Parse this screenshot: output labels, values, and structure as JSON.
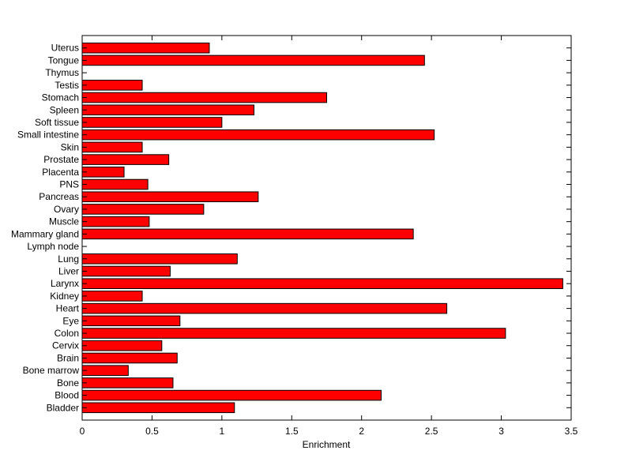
{
  "chart_data": {
    "type": "bar",
    "orientation": "horizontal",
    "xlabel": "Enrichment",
    "ylabel": "",
    "title": "",
    "xlim": [
      0,
      3.5
    ],
    "xticks": [
      "0",
      "0.5",
      "1",
      "1.5",
      "2",
      "2.5",
      "3",
      "3.5"
    ],
    "grid": false,
    "bar_color": "#ff0000",
    "edge_color": "#000000",
    "categories": [
      "Uterus",
      "Tongue",
      "Thymus",
      "Testis",
      "Stomach",
      "Spleen",
      "Soft tissue",
      "Small intestine",
      "Skin",
      "Prostate",
      "Placenta",
      "PNS",
      "Pancreas",
      "Ovary",
      "Muscle",
      "Mammary gland",
      "Lymph node",
      "Lung",
      "Liver",
      "Larynx",
      "Kidney",
      "Heart",
      "Eye",
      "Colon",
      "Cervix",
      "Brain",
      "Bone marrow",
      "Bone",
      "Blood",
      "Bladder"
    ],
    "values": [
      0.91,
      2.45,
      0,
      0.43,
      1.75,
      1.23,
      1.0,
      2.52,
      0.43,
      0.62,
      0.3,
      0.47,
      1.26,
      0.87,
      0.48,
      2.37,
      0,
      1.11,
      0.63,
      3.44,
      0.43,
      2.61,
      0.7,
      3.03,
      0.57,
      0.68,
      0.33,
      0.65,
      2.14,
      1.09
    ]
  }
}
